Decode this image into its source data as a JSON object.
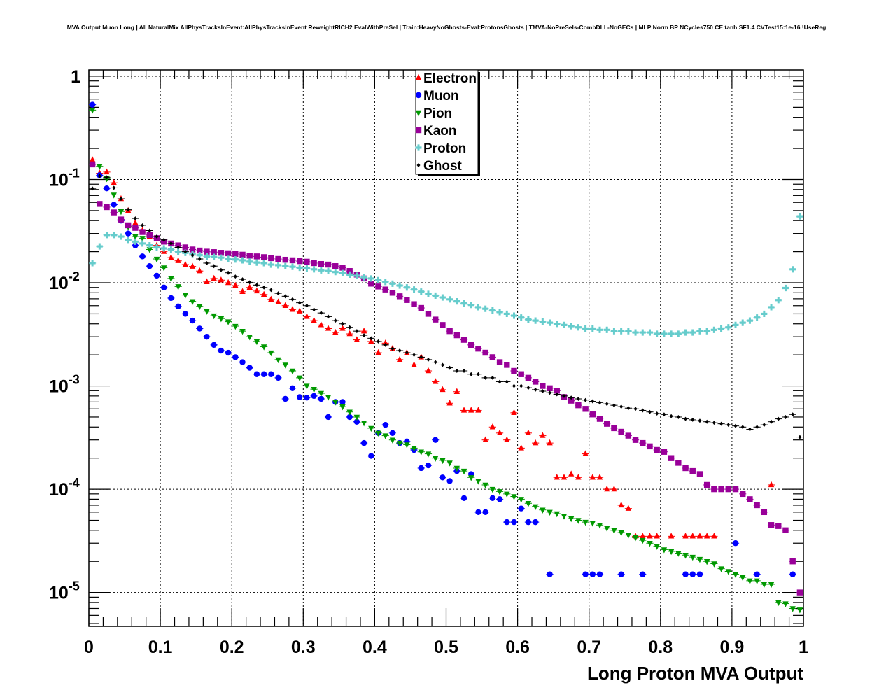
{
  "chart_data": {
    "type": "scatter",
    "title": "MVA Output Muon Long | All NaturalMix AllPhysTracksInEvent:AllPhysTracksInEvent ReweightRICH2 EvalWithPreSel | Train:HeavyNoGhosts-Eval:ProtonsGhosts | TMVA-NoPreSels-CombDLL-NoGECs | MLP Norm BP NCycles750 CE tanh SF1.4 CVTest15:1e-16 !UseReg",
    "xlabel": "Long Proton MVA Output",
    "ylabel": "",
    "xlim": [
      0,
      1
    ],
    "ylim": [
      4.7e-06,
      1.15
    ],
    "yscale": "log",
    "grid": true,
    "legend_position": "top-center",
    "bins": 100,
    "xticks": [
      "0",
      "0.1",
      "0.2",
      "0.3",
      "0.4",
      "0.5",
      "0.6",
      "0.7",
      "0.8",
      "0.9",
      "1"
    ],
    "yticks": [
      {
        "base": "1",
        "exp": ""
      },
      {
        "base": "10",
        "exp": "-1"
      },
      {
        "base": "10",
        "exp": "-2"
      },
      {
        "base": "10",
        "exp": "-3"
      },
      {
        "base": "10",
        "exp": "-4"
      },
      {
        "base": "10",
        "exp": "-5"
      }
    ],
    "series": [
      {
        "name": "Electron",
        "color": "#ff0000",
        "marker": "triangle-up",
        "values": [
          0.155,
          0.115,
          0.118,
          0.093,
          0.065,
          0.05,
          0.038,
          0.032,
          0.028,
          0.023,
          0.02,
          0.0175,
          0.0163,
          0.015,
          0.0144,
          0.013,
          0.0102,
          0.011,
          0.0106,
          0.01,
          0.0094,
          0.0082,
          0.009,
          0.0083,
          0.0077,
          0.0069,
          0.0065,
          0.006,
          0.0055,
          0.0053,
          0.0047,
          0.0043,
          0.0039,
          0.0036,
          0.0033,
          0.0036,
          0.0032,
          0.0028,
          0.0034,
          0.0027,
          0.0021,
          0.0026,
          0.0023,
          0.0018,
          0.0021,
          0.0016,
          0.0019,
          0.0014,
          0.0011,
          0.00092,
          0.00068,
          0.00088,
          0.00058,
          0.00058,
          0.00058,
          0.0003,
          0.0004,
          0.00035,
          0.0003,
          0.00055,
          0.00025,
          0.00035,
          0.00028,
          0.00033,
          0.00028,
          0.00013,
          0.00013,
          0.00014,
          0.00013,
          0.00022,
          0.00013,
          0.00013,
          0.0001,
          0.0001,
          7e-05,
          6.5e-05,
          3.5e-05,
          3.5e-05,
          3.5e-05,
          3.5e-05,
          null,
          3.5e-05,
          null,
          3.5e-05,
          3.5e-05,
          3.5e-05,
          3.5e-05,
          3.5e-05,
          null,
          null,
          null,
          null,
          null,
          null,
          null,
          0.00011,
          null,
          null,
          null,
          null
        ]
      },
      {
        "name": "Muon",
        "color": "#0000ff",
        "marker": "circle",
        "values": [
          0.53,
          0.11,
          0.082,
          0.057,
          0.04,
          0.03,
          0.023,
          0.018,
          0.0145,
          0.0117,
          0.009,
          0.0071,
          0.0059,
          0.005,
          0.0043,
          0.0036,
          0.003,
          0.0025,
          0.0022,
          0.0021,
          0.0019,
          0.0017,
          0.0015,
          0.0013,
          0.0013,
          0.0013,
          0.0012,
          0.00075,
          0.00095,
          0.00078,
          0.00077,
          0.0008,
          0.00075,
          0.0005,
          0.0007,
          0.0007,
          0.0005,
          0.00045,
          0.00028,
          0.00021,
          0.00035,
          0.00042,
          0.00035,
          0.00028,
          0.00029,
          0.00024,
          0.00016,
          0.00017,
          0.0003,
          0.00013,
          0.00012,
          0.00015,
          8.2e-05,
          0.00014,
          6e-05,
          6e-05,
          8.2e-05,
          8e-05,
          4.8e-05,
          4.8e-05,
          6.5e-05,
          4.8e-05,
          4.8e-05,
          null,
          1.5e-05,
          null,
          null,
          null,
          null,
          1.5e-05,
          1.5e-05,
          1.5e-05,
          null,
          null,
          1.5e-05,
          null,
          null,
          1.5e-05,
          null,
          null,
          null,
          null,
          null,
          1.5e-05,
          1.5e-05,
          1.5e-05,
          null,
          null,
          null,
          null,
          3e-05,
          null,
          null,
          1.5e-05,
          null,
          null,
          null,
          null,
          1.5e-05,
          null
        ]
      },
      {
        "name": "Pion",
        "color": "#009900",
        "marker": "triangle-down",
        "values": [
          0.47,
          0.134,
          0.102,
          0.071,
          0.049,
          0.035,
          0.028,
          0.027,
          0.021,
          0.017,
          0.014,
          0.011,
          0.0092,
          0.0076,
          0.0066,
          0.0059,
          0.0053,
          0.0048,
          0.0045,
          0.0042,
          0.0038,
          0.0034,
          0.003,
          0.0027,
          0.0024,
          0.0021,
          0.0018,
          0.0016,
          0.0014,
          0.0012,
          0.001,
          0.00093,
          0.00085,
          0.00078,
          0.0007,
          0.00063,
          0.00056,
          0.0005,
          0.00044,
          0.00039,
          0.00035,
          0.00033,
          0.0003,
          0.00028,
          0.00027,
          0.00025,
          0.00023,
          0.00022,
          0.0002,
          0.00019,
          0.00018,
          0.00016,
          0.00015,
          0.00013,
          0.00012,
          0.00011,
          0.0001,
          9.5e-05,
          9e-05,
          8.5e-05,
          8e-05,
          7.3e-05,
          6.8e-05,
          6.3e-05,
          6e-05,
          5.8e-05,
          5.5e-05,
          5.2e-05,
          5e-05,
          4.8e-05,
          4.7e-05,
          4.5e-05,
          4.2e-05,
          4e-05,
          3.8e-05,
          3.6e-05,
          3.4e-05,
          3.2e-05,
          3e-05,
          2.8e-05,
          2.6e-05,
          2.5e-05,
          2.4e-05,
          2.3e-05,
          2.2e-05,
          2.1e-05,
          2e-05,
          1.9e-05,
          1.7e-05,
          1.6e-05,
          1.5e-05,
          1.4e-05,
          1.3e-05,
          1.3e-05,
          1.2e-05,
          1.2e-05,
          8e-06,
          7.8e-06,
          7e-06,
          6.8e-06
        ]
      },
      {
        "name": "Kaon",
        "color": "#990099",
        "marker": "square",
        "values": [
          0.14,
          0.058,
          0.054,
          0.048,
          0.041,
          0.036,
          0.034,
          0.031,
          0.029,
          0.027,
          0.025,
          0.024,
          0.023,
          0.022,
          0.021,
          0.0205,
          0.02,
          0.0198,
          0.0195,
          0.0193,
          0.019,
          0.0187,
          0.0183,
          0.018,
          0.0177,
          0.0173,
          0.017,
          0.0167,
          0.0165,
          0.0162,
          0.016,
          0.0155,
          0.0152,
          0.015,
          0.0145,
          0.014,
          0.013,
          0.012,
          0.011,
          0.0098,
          0.0092,
          0.0086,
          0.008,
          0.0074,
          0.0068,
          0.0062,
          0.0057,
          0.005,
          0.0044,
          0.0039,
          0.0034,
          0.0031,
          0.0028,
          0.0025,
          0.0023,
          0.0021,
          0.0019,
          0.0017,
          0.0016,
          0.0014,
          0.0013,
          0.0012,
          0.0011,
          0.001,
          0.00095,
          0.0009,
          0.00078,
          0.00072,
          0.00065,
          0.0006,
          0.00053,
          0.00048,
          0.00043,
          0.00039,
          0.00036,
          0.00033,
          0.0003,
          0.00028,
          0.00026,
          0.00024,
          0.00023,
          0.0002,
          0.00018,
          0.00016,
          0.00015,
          0.00014,
          0.00011,
          0.0001,
          0.0001,
          0.0001,
          0.0001,
          9e-05,
          8e-05,
          7e-05,
          6e-05,
          4.5e-05,
          4.4e-05,
          4e-05,
          2e-05,
          1e-05
        ]
      },
      {
        "name": "Proton",
        "color": "#66cccc",
        "marker": "cross",
        "values": [
          0.0155,
          0.0225,
          0.029,
          0.029,
          0.028,
          0.026,
          0.025,
          0.024,
          0.023,
          0.022,
          0.0215,
          0.021,
          0.02,
          0.0195,
          0.019,
          0.0185,
          0.018,
          0.0178,
          0.0175,
          0.017,
          0.0168,
          0.0165,
          0.016,
          0.0157,
          0.0155,
          0.015,
          0.0148,
          0.0145,
          0.0143,
          0.014,
          0.0138,
          0.0135,
          0.0132,
          0.013,
          0.0127,
          0.0124,
          0.012,
          0.0117,
          0.0113,
          0.011,
          0.0106,
          0.0102,
          0.0098,
          0.0094,
          0.009,
          0.0086,
          0.0082,
          0.0078,
          0.0075,
          0.0072,
          0.0069,
          0.0066,
          0.0063,
          0.0061,
          0.0058,
          0.0056,
          0.0054,
          0.0052,
          0.005,
          0.0048,
          0.0046,
          0.0044,
          0.0043,
          0.0042,
          0.0041,
          0.004,
          0.0039,
          0.0038,
          0.0037,
          0.0036,
          0.0036,
          0.0035,
          0.0035,
          0.0034,
          0.0034,
          0.0034,
          0.0033,
          0.0033,
          0.0033,
          0.0032,
          0.0032,
          0.0032,
          0.0032,
          0.0033,
          0.0033,
          0.0034,
          0.0034,
          0.0035,
          0.0036,
          0.0037,
          0.0039,
          0.0041,
          0.0043,
          0.0046,
          0.005,
          0.0058,
          0.0068,
          0.0089,
          0.0135,
          0.044
        ]
      },
      {
        "name": "Ghost",
        "color": "#000000",
        "marker": "diamond",
        "values": [
          0.082,
          0.108,
          0.105,
          0.083,
          0.065,
          0.051,
          0.042,
          0.036,
          0.032,
          0.028,
          0.026,
          0.024,
          0.022,
          0.02,
          0.0185,
          0.017,
          0.0155,
          0.0145,
          0.0133,
          0.0125,
          0.0115,
          0.0108,
          0.0101,
          0.0095,
          0.009,
          0.0085,
          0.0079,
          0.0074,
          0.0069,
          0.0064,
          0.006,
          0.0055,
          0.0051,
          0.0047,
          0.0043,
          0.004,
          0.0037,
          0.0034,
          0.0031,
          0.0029,
          0.0027,
          0.0025,
          0.0023,
          0.0022,
          0.0021,
          0.002,
          0.0019,
          0.0018,
          0.0017,
          0.0016,
          0.0015,
          0.0014,
          0.0014,
          0.0013,
          0.0013,
          0.0012,
          0.0012,
          0.0011,
          0.0011,
          0.001,
          0.001,
          0.00096,
          0.00092,
          0.00089,
          0.00086,
          0.00083,
          0.0008,
          0.00077,
          0.00075,
          0.00073,
          0.00071,
          0.00069,
          0.00067,
          0.00065,
          0.00063,
          0.00061,
          0.0006,
          0.00058,
          0.00056,
          0.00054,
          0.00053,
          0.00051,
          0.0005,
          0.00048,
          0.00047,
          0.00046,
          0.00045,
          0.00044,
          0.00043,
          0.00042,
          0.00041,
          0.0004,
          0.00038,
          0.0004,
          0.00042,
          0.00045,
          0.00048,
          0.0005,
          0.00053,
          0.00032
        ]
      }
    ]
  }
}
